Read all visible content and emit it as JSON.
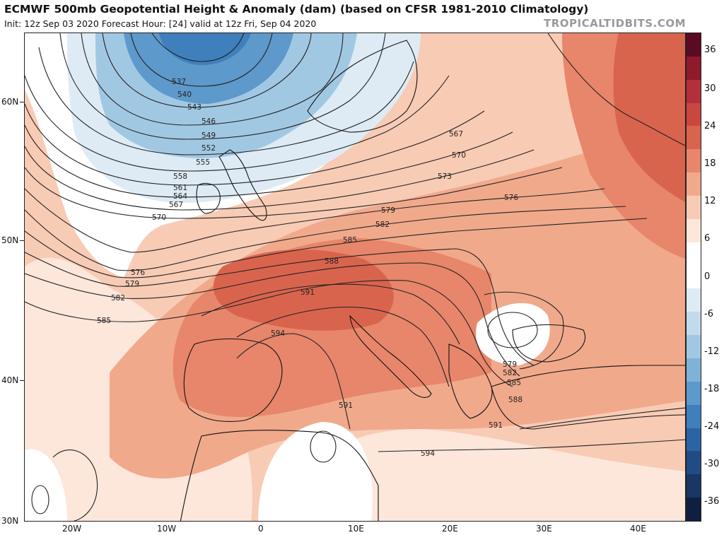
{
  "header": {
    "title": "ECMWF 500mb Geopotential Height & Anomaly (dam) (based on CFSR 1981-2010 Climatology)",
    "subtitle": "Init: 12z Sep 03 2020   Forecast Hour: [24]   valid at 12z Fri, Sep 04 2020",
    "site": "TROPICALTIDBITS.COM"
  },
  "axes": {
    "lat_labels": [
      "60N",
      "50N",
      "40N",
      "30N"
    ],
    "lon_labels": [
      "20W",
      "10W",
      "0",
      "10E",
      "20E",
      "30E",
      "40E"
    ]
  },
  "colorbar": {
    "labels": [
      "36",
      "30",
      "24",
      "18",
      "12",
      "6",
      "0",
      "-6",
      "-12",
      "-18",
      "-24",
      "-30",
      "-36"
    ],
    "colors": [
      "#5c0a22",
      "#8e1a2b",
      "#b3303a",
      "#c9473f",
      "#d9644e",
      "#e7866a",
      "#f1a98c",
      "#f8cbb5",
      "#fde6da",
      "#ffffff",
      "#ffffff",
      "#deebf4",
      "#c2dbec",
      "#a1c8e3",
      "#7fb2d8",
      "#5d99cb",
      "#3f7fbc",
      "#2c64a3",
      "#214b84",
      "#193664",
      "#101f40"
    ]
  },
  "contour_labels": [
    "537",
    "540",
    "543",
    "546",
    "549",
    "552",
    "555",
    "558",
    "561",
    "564",
    "567",
    "570",
    "573",
    "576",
    "579",
    "582",
    "585",
    "588",
    "591",
    "594"
  ],
  "colors": {
    "warm_strong": "#d9644e",
    "warm_mid": "#e7866a",
    "warm_light": "#f1a98c",
    "warm_pale": "#f8cbb5",
    "cool_pale": "#deebf4",
    "cool_mid": "#a1c8e3",
    "cool_deep": "#5d99cb",
    "cool_core": "#3f7fbc"
  }
}
